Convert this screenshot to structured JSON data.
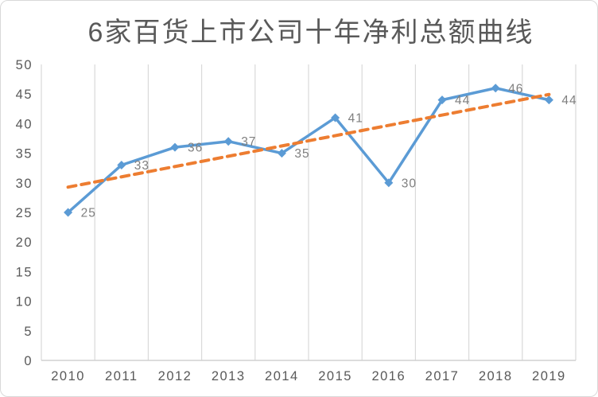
{
  "chart_data": {
    "type": "line",
    "title": "6家百货上市公司十年净利总额曲线",
    "categories": [
      "2010",
      "2011",
      "2012",
      "2013",
      "2014",
      "2015",
      "2016",
      "2017",
      "2018",
      "2019"
    ],
    "series": [
      {
        "values": [
          25,
          33,
          36,
          37,
          35,
          41,
          30,
          44,
          46,
          44
        ],
        "color": "#5B9BD5",
        "marker": "diamond",
        "data_labels_shown": true,
        "data_label_position": "right"
      }
    ],
    "trendline": {
      "type": "linear",
      "style": "dashed",
      "color": "#ED7D31"
    },
    "xlabel": "",
    "ylabel": "",
    "ylim": [
      0,
      50
    ],
    "ytick_step": 5,
    "ytick_labels": [
      "0",
      "5",
      "10",
      "15",
      "20",
      "25",
      "30",
      "35",
      "40",
      "45",
      "50"
    ],
    "grid": "vertical-only",
    "legend": "none",
    "colors": {
      "gridline": "#D9D9D9",
      "axis_line": "#D0D0D0",
      "axis_label": "#595959",
      "data_label": "#7F7F7F",
      "title": "#595959"
    }
  }
}
